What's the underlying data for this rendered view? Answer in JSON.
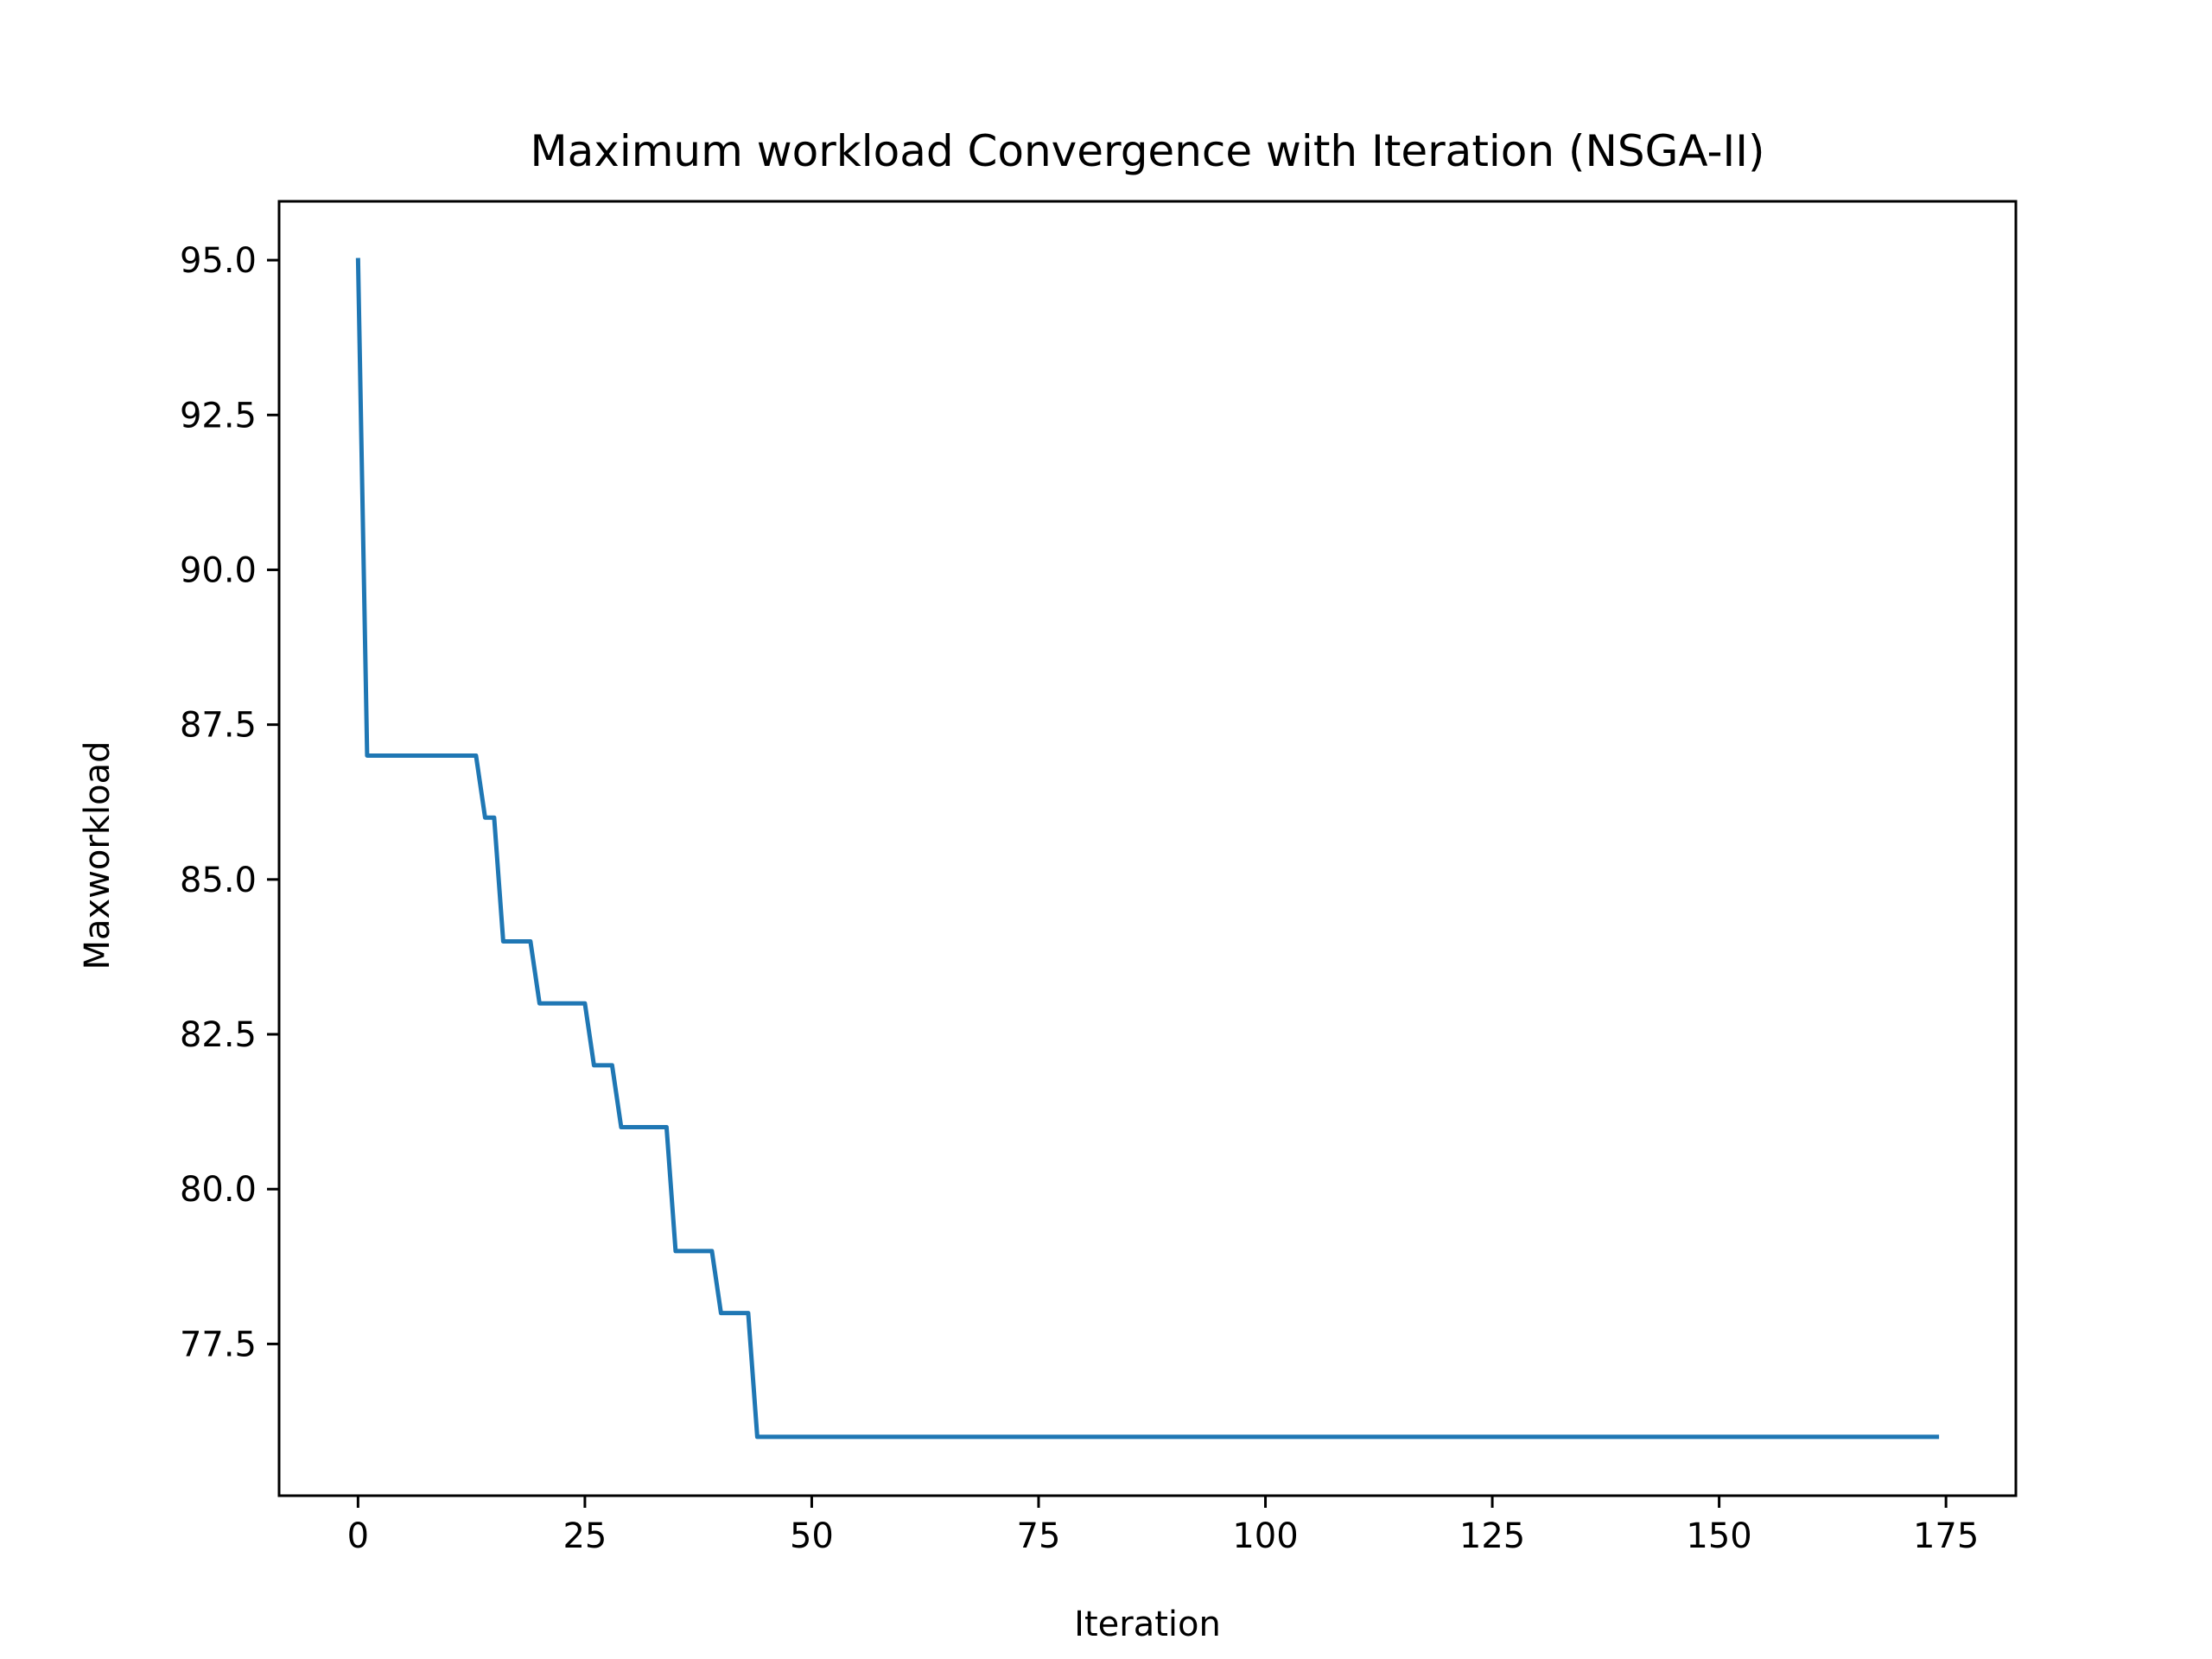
{
  "chart_data": {
    "type": "line",
    "title": "Maximum workload Convergence with Iteration (NSGA-II)",
    "xlabel": "Iteration",
    "ylabel": "Maxworkload",
    "xlim": [
      -8.7,
      182.7
    ],
    "ylim": [
      75.05,
      95.95
    ],
    "xticks": [
      0,
      25,
      50,
      75,
      100,
      125,
      150,
      175
    ],
    "yticks": [
      77.5,
      80.0,
      82.5,
      85.0,
      87.5,
      90.0,
      92.5,
      95.0
    ],
    "ytick_labels": [
      "77.5",
      "80.0",
      "82.5",
      "85.0",
      "87.5",
      "90.0",
      "92.5",
      "95.0"
    ],
    "grid": false,
    "series_color": "#1f77b4",
    "series": [
      {
        "x": [
          0,
          1,
          13,
          14,
          15,
          16,
          19,
          20,
          25,
          26,
          28,
          29,
          34,
          35,
          39,
          40,
          43,
          44,
          174
        ],
        "y": [
          95,
          87,
          87,
          86,
          86,
          84,
          84,
          83,
          83,
          82,
          82,
          81,
          81,
          79,
          79,
          78,
          78,
          76,
          76
        ]
      }
    ]
  }
}
